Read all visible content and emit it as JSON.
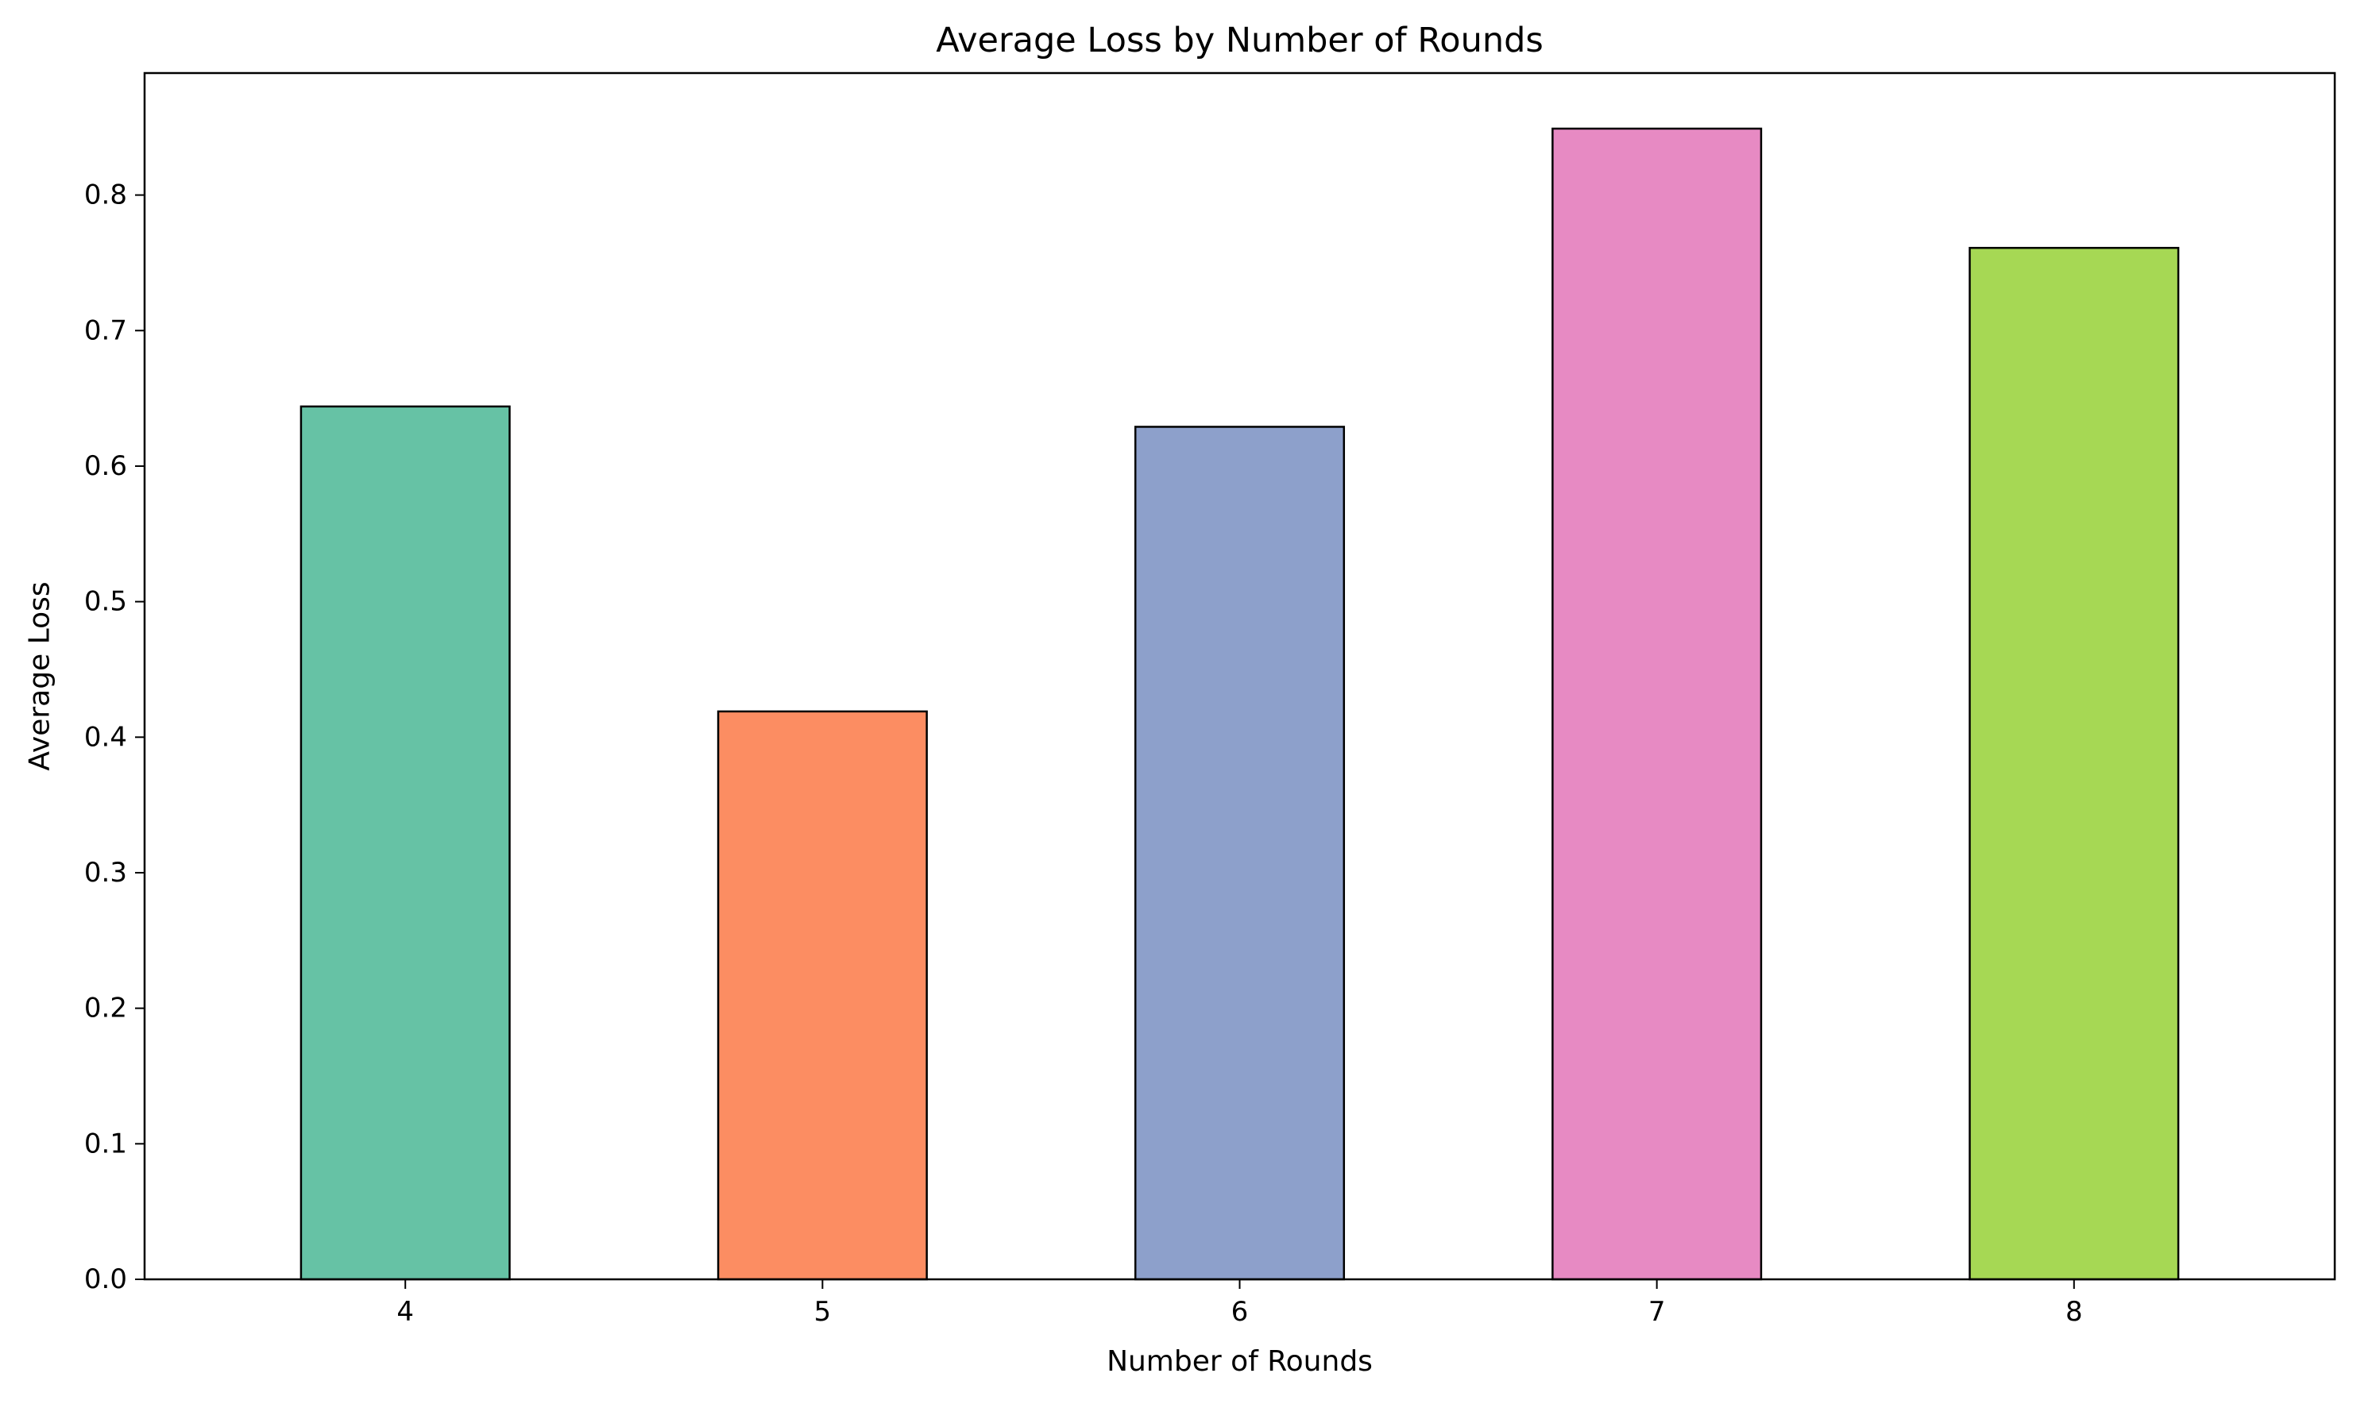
{
  "chart_data": {
    "type": "bar",
    "title": "Average Loss by Number of Rounds",
    "xlabel": "Number of Rounds",
    "ylabel": "Average Loss",
    "categories": [
      "4",
      "5",
      "6",
      "7",
      "8"
    ],
    "values": [
      0.644,
      0.419,
      0.629,
      0.849,
      0.761
    ],
    "colors": [
      "#66c2a5",
      "#fc8d62",
      "#8da0cb",
      "#e78ac3",
      "#a6d854"
    ],
    "edge_color": "#000000",
    "ylim": [
      0,
      0.89
    ],
    "yticks": [
      "0.0",
      "0.1",
      "0.2",
      "0.3",
      "0.4",
      "0.5",
      "0.6",
      "0.7",
      "0.8"
    ],
    "grid": false,
    "legend": "none"
  }
}
